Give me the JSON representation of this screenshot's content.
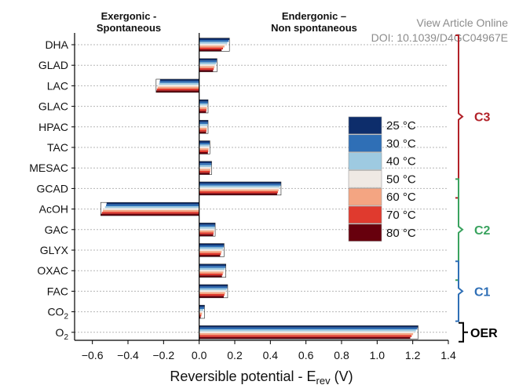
{
  "watermark": {
    "line1": "View Article Online",
    "line2": "DOI: 10.1039/D4GC04967E"
  },
  "headers": {
    "left": [
      "Exergonic -",
      "Spontaneous"
    ],
    "right": [
      "Endergonic –",
      "Non spontaneous"
    ]
  },
  "chart_data": {
    "type": "bar",
    "orientation": "horizontal",
    "xlabel": "Reversible potential - E",
    "xlabel_sub": "rev",
    "xlabel_unit": " (V)",
    "xlim": [
      -0.7,
      1.4
    ],
    "xticks": [
      -0.6,
      -0.4,
      -0.2,
      0.0,
      0.2,
      0.4,
      0.6,
      0.8,
      1.0,
      1.2,
      1.4
    ],
    "xtick_labels": [
      "−0.6",
      "−0.4",
      "−0.2",
      "0.0",
      "0.2",
      "0.4",
      "0.6",
      "0.8",
      "1.0",
      "1.2",
      "1.4"
    ],
    "grid": "horizontal dashed",
    "legend_position": "right",
    "categories": [
      {
        "main": "DHA",
        "sub": ""
      },
      {
        "main": "GLAD",
        "sub": ""
      },
      {
        "main": "LAC",
        "sub": ""
      },
      {
        "main": "GLAC",
        "sub": ""
      },
      {
        "main": "HPAC",
        "sub": ""
      },
      {
        "main": "TAC",
        "sub": ""
      },
      {
        "main": "MESAC",
        "sub": ""
      },
      {
        "main": "GCAD",
        "sub": ""
      },
      {
        "main": "AcOH",
        "sub": ""
      },
      {
        "main": "GAC",
        "sub": ""
      },
      {
        "main": "GLYX",
        "sub": ""
      },
      {
        "main": "OXAC",
        "sub": ""
      },
      {
        "main": "FAC",
        "sub": ""
      },
      {
        "main": "CO",
        "sub": "2"
      },
      {
        "main": "O",
        "sub": "2"
      }
    ],
    "series": [
      {
        "name": "25 °C",
        "color": "#0d2d6b",
        "values": [
          0.17,
          0.1,
          -0.22,
          0.05,
          0.05,
          0.06,
          0.07,
          0.46,
          -0.52,
          0.09,
          0.14,
          0.15,
          0.16,
          0.03,
          1.23
        ]
      },
      {
        "name": "30 °C",
        "color": "#2f6fb6",
        "values": [
          0.166,
          0.098,
          -0.222,
          0.049,
          0.049,
          0.059,
          0.069,
          0.458,
          -0.523,
          0.089,
          0.138,
          0.148,
          0.158,
          0.028,
          1.226
        ]
      },
      {
        "name": "40 °C",
        "color": "#9ecae1",
        "values": [
          0.158,
          0.094,
          -0.226,
          0.047,
          0.047,
          0.057,
          0.067,
          0.454,
          -0.529,
          0.087,
          0.134,
          0.144,
          0.154,
          0.024,
          1.218
        ]
      },
      {
        "name": "50 °C",
        "color": "#efe9e4",
        "values": [
          0.15,
          0.09,
          -0.23,
          0.045,
          0.045,
          0.055,
          0.065,
          0.45,
          -0.535,
          0.085,
          0.13,
          0.14,
          0.15,
          0.02,
          1.21
        ]
      },
      {
        "name": "60 °C",
        "color": "#f4a582",
        "values": [
          0.142,
          0.086,
          -0.234,
          0.043,
          0.043,
          0.053,
          0.063,
          0.446,
          -0.541,
          0.083,
          0.126,
          0.136,
          0.146,
          0.016,
          1.202
        ]
      },
      {
        "name": "70 °C",
        "color": "#e03a2e",
        "values": [
          0.134,
          0.082,
          -0.238,
          0.041,
          0.041,
          0.051,
          0.061,
          0.442,
          -0.547,
          0.081,
          0.122,
          0.132,
          0.142,
          0.012,
          1.194
        ]
      },
      {
        "name": "80 °C",
        "color": "#67000d",
        "values": [
          0.126,
          0.078,
          -0.242,
          0.039,
          0.039,
          0.049,
          0.059,
          0.438,
          -0.553,
          0.079,
          0.118,
          0.128,
          0.138,
          0.008,
          1.186
        ]
      }
    ],
    "groups": [
      {
        "label": "C3",
        "color": "#b22229",
        "from": 0,
        "to": 7
      },
      {
        "label": "C2",
        "color": "#3aa35f",
        "from": 7,
        "to": 11
      },
      {
        "label": "C1",
        "color": "#2f6fb6",
        "from": 11,
        "to": 13
      },
      {
        "label": "OER",
        "color": "#000000",
        "from": 14,
        "to": 14
      }
    ]
  }
}
